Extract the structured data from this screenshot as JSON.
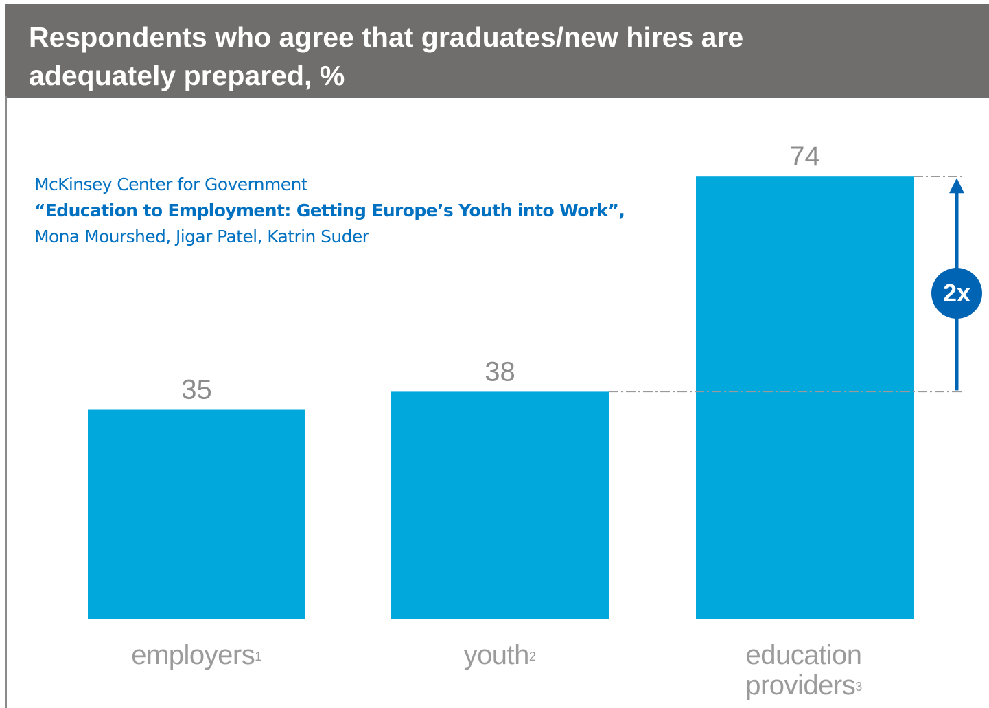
{
  "header": {
    "title": "Respondents who agree that graduates/new hires are adequately prepared, %"
  },
  "source": {
    "org": "McKinsey Center for Government",
    "report": "“Education to Employment: Getting Europe’s Youth into Work”,",
    "authors": "Mona Mourshed, Jigar Patel, Katrin Suder"
  },
  "chart_data": {
    "type": "bar",
    "title": "Respondents who agree that graduates/new hires are adequately prepared, %",
    "categories": [
      "employers",
      "youth",
      "education providers"
    ],
    "category_footnotes": [
      "1",
      "2",
      "3"
    ],
    "values": [
      35,
      38,
      74
    ],
    "ylim": [
      0,
      80
    ],
    "grid": false,
    "legend": "none",
    "bar_color": "#00a8dc",
    "annotation": {
      "label": "2x",
      "from_category": "youth",
      "to_category": "education providers",
      "color": "#0064b4"
    }
  }
}
